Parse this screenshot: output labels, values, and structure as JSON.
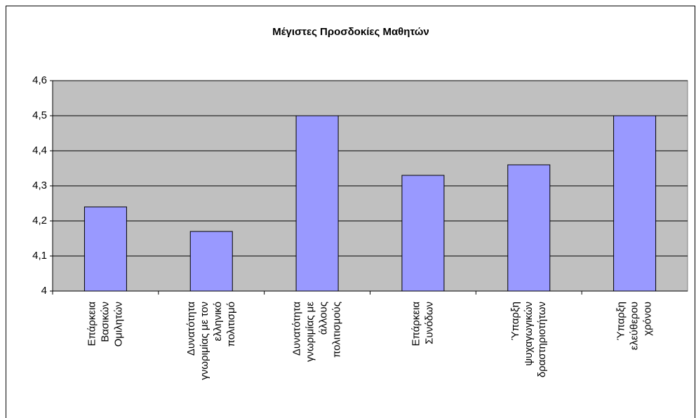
{
  "chart_data": {
    "type": "bar",
    "title": "Μέγιστες Προσδοκίες Μαθητών",
    "categories": [
      "Επάρκεια\nΒασικών\nΟμιλητών",
      "Δυνατότητα\nγνωριμίας με τον\nελληνικό\nπολιτισμό",
      "Δυνατότητα\nγνωριμίας με\nάλλους\nπολιτισμούς",
      "Επάρκεια\nΣυνόδων",
      "Ύπαρξη\nψυχαγωγικών\nδραστηριοτήτων",
      "Ύπαρξη\nελεύθερου\nχρόνου"
    ],
    "values": [
      4.24,
      4.17,
      4.5,
      4.33,
      4.36,
      4.5
    ],
    "color": "#9999ff",
    "ylim": [
      4,
      4.6
    ],
    "yticks": [
      4,
      {
        "value": 4.1,
        "label": "4,1"
      },
      {
        "value": 4.2,
        "label": "4,2"
      },
      {
        "value": 4.3,
        "label": "4,3"
      },
      {
        "value": 4.4,
        "label": "4,4"
      },
      {
        "value": 4.5,
        "label": "4,5"
      },
      {
        "value": 4.6,
        "label": "4,6"
      }
    ],
    "grid": true
  }
}
